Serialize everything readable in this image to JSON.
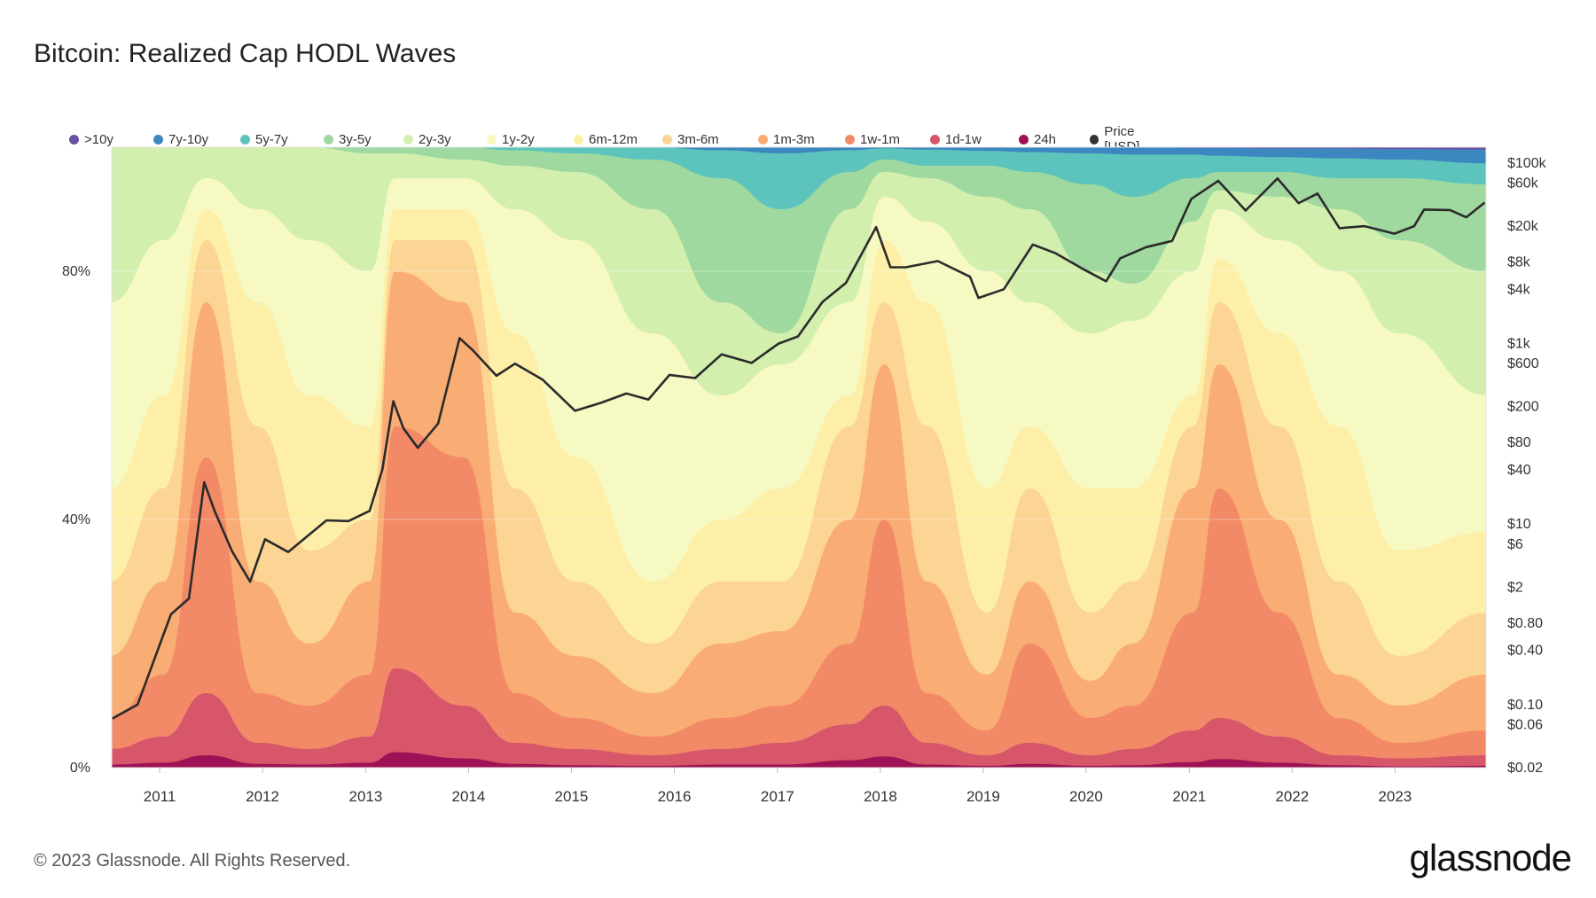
{
  "title": "Bitcoin: Realized Cap HODL Waves",
  "footer": "© 2023 Glassnode. All Rights Reserved.",
  "brand": "glassnode",
  "colors": {
    "price_line": "#2b2b2b",
    "grid": "#eeeeee",
    "axis_text": "#333333"
  },
  "chart_data": {
    "type": "area",
    "stacking": "percent",
    "x_axis": {
      "type": "date",
      "ticks": [
        "2011",
        "2012",
        "2013",
        "2014",
        "2015",
        "2016",
        "2017",
        "2018",
        "2019",
        "2020",
        "2021",
        "2022",
        "2023"
      ],
      "range": [
        "2010-07-15",
        "2023-11-20"
      ]
    },
    "y_axis_left": {
      "ticks": [
        "0%",
        "40%",
        "80%"
      ],
      "range": [
        0,
        100
      ]
    },
    "y_axis_right": {
      "scale": "log",
      "label": "",
      "ticks": [
        "$100k",
        "$60k",
        "$20k",
        "$8k",
        "$4k",
        "$1k",
        "$600",
        "$200",
        "$80",
        "$40",
        "$10",
        "$6",
        "$2",
        "$0.80",
        "$0.40",
        "$0.10",
        "$0.06",
        "$0.02"
      ],
      "range": [
        0.02,
        150000
      ]
    },
    "legend_position": "top",
    "series": [
      {
        "name": ">10y",
        "color": "#6a51a3"
      },
      {
        "name": "7y-10y",
        "color": "#3d87c0"
      },
      {
        "name": "5y-7y",
        "color": "#5cc4bc"
      },
      {
        "name": "3y-5y",
        "color": "#9fd9a0"
      },
      {
        "name": "2y-3y",
        "color": "#d3efae"
      },
      {
        "name": "1y-2y",
        "color": "#f6f9c2"
      },
      {
        "name": "6m-12m",
        "color": "#fdefa8"
      },
      {
        "name": "3m-6m",
        "color": "#fcd493"
      },
      {
        "name": "1m-3m",
        "color": "#f9ad74"
      },
      {
        "name": "1w-1m",
        "color": "#f28a68"
      },
      {
        "name": "1d-1w",
        "color": "#d7566a"
      },
      {
        "name": "24h",
        "color": "#9e1255"
      },
      {
        "name": "Price [USD]",
        "color": "#333333"
      }
    ],
    "bands_percent_by_time": {
      "note": "cumulative upper edges (%) of age bands from the bottom (24h upward), sampled roughly",
      "dates": [
        "2010-08",
        "2011-01",
        "2011-06",
        "2011-12",
        "2012-06",
        "2013-01",
        "2013-04",
        "2013-12",
        "2014-06",
        "2015-01",
        "2015-10",
        "2016-06",
        "2017-01",
        "2017-09",
        "2018-01",
        "2018-06",
        "2019-01",
        "2019-06",
        "2020-01",
        "2020-06",
        "2021-01",
        "2021-04",
        "2021-11",
        "2022-06",
        "2023-01",
        "2023-11"
      ],
      "24h": [
        0.5,
        0.8,
        2.0,
        0.6,
        0.5,
        0.8,
        2.5,
        1.5,
        0.6,
        0.4,
        0.3,
        0.5,
        0.5,
        1.2,
        1.8,
        0.5,
        0.3,
        0.6,
        0.3,
        0.4,
        0.9,
        1.4,
        0.8,
        0.4,
        0.2,
        0.3
      ],
      "1d-1w": [
        3,
        5,
        12,
        4,
        3,
        5,
        16,
        10,
        4,
        3,
        2,
        3,
        4,
        7,
        10,
        4,
        2,
        4,
        2,
        3,
        6,
        8,
        5,
        2,
        1.5,
        2
      ],
      "1w-1m": [
        8,
        15,
        50,
        12,
        10,
        15,
        55,
        50,
        12,
        8,
        5,
        8,
        10,
        20,
        40,
        12,
        6,
        20,
        8,
        10,
        25,
        45,
        25,
        8,
        4,
        6
      ],
      "1m-3m": [
        18,
        30,
        75,
        30,
        20,
        30,
        80,
        75,
        25,
        18,
        12,
        20,
        22,
        40,
        65,
        30,
        15,
        30,
        14,
        20,
        45,
        65,
        40,
        15,
        10,
        15
      ],
      "3m-6m": [
        30,
        45,
        85,
        55,
        35,
        40,
        85,
        85,
        45,
        30,
        20,
        30,
        30,
        55,
        75,
        55,
        25,
        45,
        25,
        30,
        55,
        75,
        55,
        30,
        18,
        25
      ],
      "6m-12m": [
        45,
        60,
        90,
        75,
        60,
        55,
        90,
        90,
        70,
        50,
        30,
        40,
        45,
        60,
        85,
        75,
        45,
        55,
        45,
        45,
        60,
        82,
        70,
        55,
        35,
        38
      ],
      "1y-2y": [
        75,
        85,
        95,
        90,
        85,
        80,
        95,
        95,
        90,
        85,
        70,
        60,
        65,
        75,
        92,
        88,
        80,
        75,
        70,
        72,
        80,
        90,
        85,
        80,
        70,
        60
      ],
      "2y-3y": [
        100,
        100,
        100,
        100,
        100,
        99,
        99,
        98,
        97,
        96,
        90,
        75,
        70,
        90,
        96,
        95,
        92,
        90,
        80,
        78,
        88,
        93,
        92,
        90,
        85,
        80
      ],
      "3y-5y": [
        100,
        100,
        100,
        100,
        100,
        100,
        100,
        100,
        99.5,
        99,
        98,
        95,
        90,
        96,
        98,
        97,
        97,
        96,
        94,
        92,
        95,
        96,
        96,
        95,
        95,
        94
      ],
      "5y-7y": [
        100,
        100,
        100,
        100,
        100,
        100,
        100,
        100,
        100,
        100,
        100,
        99.5,
        99,
        99.5,
        99.8,
        99.6,
        99.4,
        99.2,
        99,
        98.8,
        98.8,
        98.6,
        98.4,
        98.2,
        98,
        97.4
      ],
      "7y-10y": [
        100,
        100,
        100,
        100,
        100,
        100,
        100,
        100,
        100,
        100,
        100,
        100,
        100,
        100,
        100,
        100,
        100,
        100,
        100,
        100,
        99.9,
        99.9,
        99.8,
        99.8,
        99.7,
        99.6
      ],
      ">10y": [
        100,
        100,
        100,
        100,
        100,
        100,
        100,
        100,
        100,
        100,
        100,
        100,
        100,
        100,
        100,
        100,
        100,
        100,
        100,
        100,
        100,
        100,
        100,
        100,
        100,
        100
      ]
    },
    "price_usd": {
      "dates": [
        "2010-07-17",
        "2010-10-15",
        "2011-02-10",
        "2011-04-15",
        "2011-06-08",
        "2011-07-15",
        "2011-09-15",
        "2011-11-18",
        "2012-01-10",
        "2012-04-01",
        "2012-08-15",
        "2012-11-01",
        "2013-01-15",
        "2013-03-01",
        "2013-04-09",
        "2013-05-15",
        "2013-07-05",
        "2013-09-15",
        "2013-11-30",
        "2014-01-15",
        "2014-04-10",
        "2014-06-15",
        "2014-09-20",
        "2015-01-14",
        "2015-04-15",
        "2015-07-15",
        "2015-10-01",
        "2015-12-15",
        "2016-03-15",
        "2016-06-17",
        "2016-10-01",
        "2017-01-05",
        "2017-03-15",
        "2017-06-10",
        "2017-09-01",
        "2017-12-17",
        "2018-02-06",
        "2018-04-01",
        "2018-07-24",
        "2018-11-15",
        "2018-12-15",
        "2019-03-15",
        "2019-06-26",
        "2019-09-15",
        "2019-12-17",
        "2020-03-12",
        "2020-05-01",
        "2020-08-01",
        "2020-11-01",
        "2021-01-08",
        "2021-04-14",
        "2021-07-20",
        "2021-11-10",
        "2022-01-24",
        "2022-04-01",
        "2022-06-18",
        "2022-09-15",
        "2022-12-30",
        "2023-03-10",
        "2023-04-14",
        "2023-07-15",
        "2023-09-11",
        "2023-11-15"
      ],
      "values": [
        0.07,
        0.1,
        1.0,
        1.5,
        29.0,
        14.0,
        5.0,
        2.3,
        6.8,
        4.9,
        11.0,
        10.8,
        14.0,
        40.0,
        230.0,
        115.0,
        70.0,
        130.0,
        1150.0,
        850.0,
        440.0,
        600.0,
        400.0,
        180.0,
        220.0,
        280.0,
        240.0,
        450.0,
        415.0,
        760.0,
        610.0,
        1000.0,
        1200.0,
        2900.0,
        4700.0,
        19500.0,
        7000.0,
        7000.0,
        8200.0,
        5500.0,
        3200.0,
        4000.0,
        12500.0,
        10000.0,
        6800.0,
        4900.0,
        8800.0,
        11700.0,
        13700.0,
        40000.0,
        63500.0,
        29800.0,
        67500.0,
        36000.0,
        46000.0,
        19000.0,
        20000.0,
        16500.0,
        20000.0,
        30500.0,
        30200.0,
        25100.0,
        36500.0
      ]
    }
  }
}
